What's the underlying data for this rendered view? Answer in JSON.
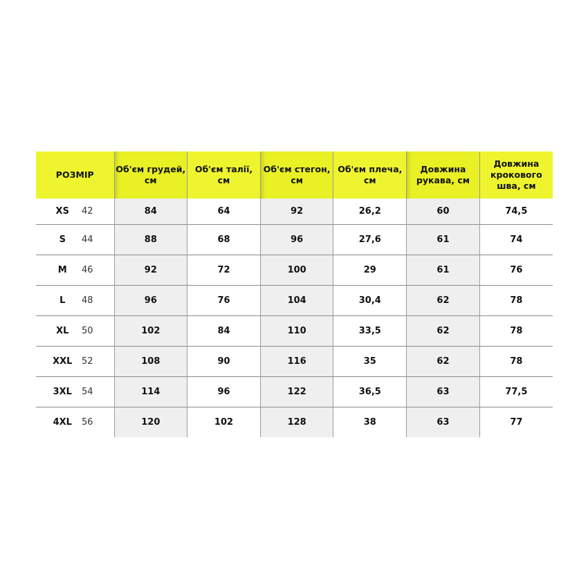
{
  "colors": {
    "header": "#eef52e",
    "shaded_column": "#efefef",
    "text": "#111111"
  },
  "headers": [
    "РОЗМІР",
    "Об'єм грудей, см",
    "Об'єм талії, см",
    "Об'єм стегон, см",
    "Об'єм плеча, см",
    "Довжина рукава, см",
    "Довжина крокового шва, см"
  ],
  "rows": [
    {
      "size": "XS",
      "num": "42",
      "values": [
        "84",
        "64",
        "92",
        "26,2",
        "60",
        "74,5"
      ]
    },
    {
      "size": "S",
      "num": "44",
      "values": [
        "88",
        "68",
        "96",
        "27,6",
        "61",
        "74"
      ]
    },
    {
      "size": "M",
      "num": "46",
      "values": [
        "92",
        "72",
        "100",
        "29",
        "61",
        "76"
      ]
    },
    {
      "size": "L",
      "num": "48",
      "values": [
        "96",
        "76",
        "104",
        "30,4",
        "62",
        "78"
      ]
    },
    {
      "size": "XL",
      "num": "50",
      "values": [
        "102",
        "84",
        "110",
        "33,5",
        "62",
        "78"
      ]
    },
    {
      "size": "XXL",
      "num": "52",
      "values": [
        "108",
        "90",
        "116",
        "35",
        "62",
        "78"
      ]
    },
    {
      "size": "3XL",
      "num": "54",
      "values": [
        "114",
        "96",
        "122",
        "36,5",
        "63",
        "77,5"
      ]
    },
    {
      "size": "4XL",
      "num": "56",
      "values": [
        "120",
        "102",
        "128",
        "38",
        "63",
        "77"
      ]
    }
  ]
}
